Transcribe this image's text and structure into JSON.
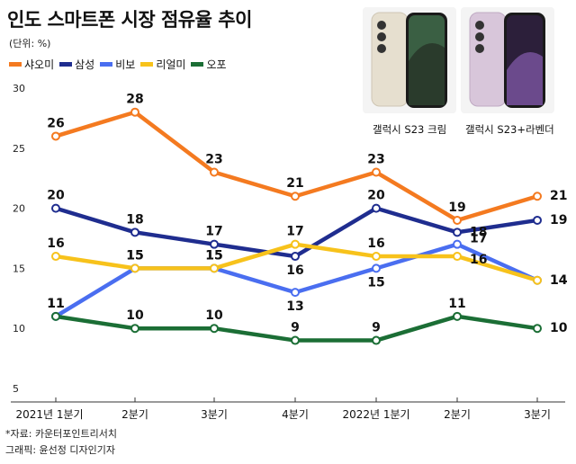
{
  "title": "인도 스마트폰 시장 점유율 추이",
  "unit": "(단위: %)",
  "source": "*자료: 카운터포인트리서치",
  "credit": "그래픽: 윤선정 디자인기자",
  "phones": [
    {
      "caption": "갤럭시 S23 크림",
      "color": "#e9e2d2"
    },
    {
      "caption": "갤럭시 S23+라벤더",
      "color": "#d9c7dc"
    }
  ],
  "chart_data": {
    "type": "line",
    "categories": [
      "2021년 1분기",
      "2분기",
      "3분기",
      "4분기",
      "2022년 1분기",
      "2분기",
      "3분기"
    ],
    "ylim": [
      5,
      30
    ],
    "yticks": [
      5,
      10,
      15,
      20,
      25,
      30
    ],
    "grid": false,
    "legend_position": "top-left",
    "series": [
      {
        "name": "샤오미",
        "color": "#f47a20",
        "values": [
          26,
          28,
          23,
          21,
          23,
          19,
          21
        ]
      },
      {
        "name": "삼성",
        "color": "#1f2d8f",
        "values": [
          20,
          18,
          17,
          16,
          20,
          18,
          19
        ]
      },
      {
        "name": "비보",
        "color": "#4a6ef0",
        "values": [
          11,
          15,
          15,
          13,
          15,
          17,
          14
        ]
      },
      {
        "name": "리얼미",
        "color": "#f7c21b",
        "values": [
          16,
          15,
          15,
          17,
          16,
          16,
          14
        ]
      },
      {
        "name": "오포",
        "color": "#1b6e35",
        "values": [
          11,
          10,
          10,
          9,
          9,
          11,
          10
        ]
      }
    ],
    "data_labels": [
      {
        "series": 0,
        "values": [
          "26",
          "28",
          "23",
          "21",
          "23",
          "19",
          "21"
        ]
      },
      {
        "series": 1,
        "values": [
          "20",
          "18",
          "17",
          "16",
          "20",
          "18",
          "19"
        ]
      },
      {
        "series": 2,
        "values": [
          "11",
          "15",
          "15",
          "13",
          "15",
          "17",
          "14"
        ]
      },
      {
        "series": 3,
        "values": [
          "16",
          "15",
          "15",
          "17",
          "16",
          "16",
          "14"
        ]
      },
      {
        "series": 4,
        "values": [
          "11",
          "10",
          "10",
          "9",
          "9",
          "11",
          "10"
        ]
      }
    ]
  }
}
